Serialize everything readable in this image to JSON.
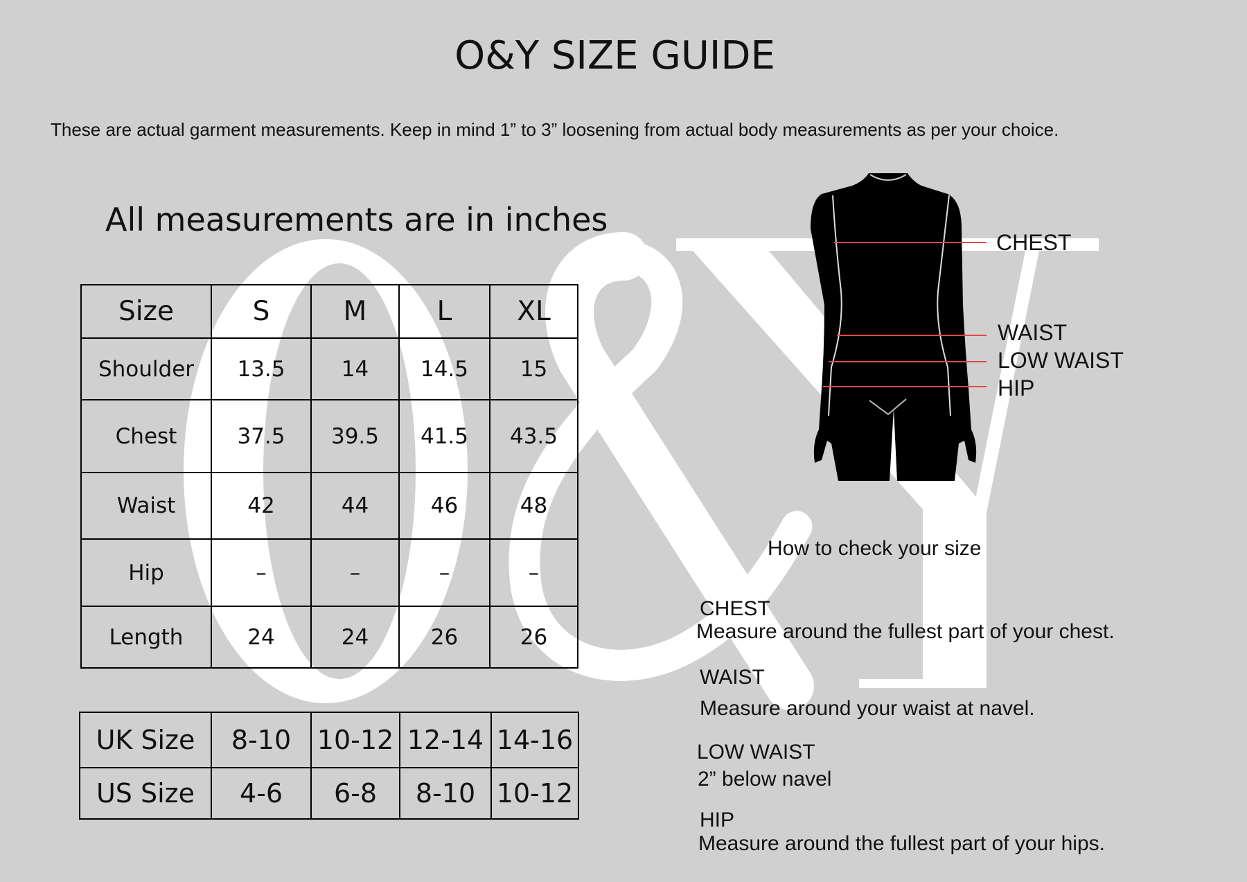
{
  "title": "O&Y SIZE GUIDE",
  "subtitle": "These are actual garment measurements. Keep in mind 1” to 3” loosening from actual body measurements as per your choice.",
  "units_note": "All measurements are in inches",
  "watermark_logo": "O&Y",
  "measurements": {
    "header": [
      "Size",
      "S",
      "M",
      "L",
      "XL"
    ],
    "rows": [
      [
        "Shoulder",
        "13.5",
        "14",
        "14.5",
        "15"
      ],
      [
        "Chest",
        "37.5",
        "39.5",
        "41.5",
        "43.5"
      ],
      [
        "Waist",
        "42",
        "44",
        "46",
        "48"
      ],
      [
        "Hip",
        "–",
        "–",
        "–",
        "–"
      ],
      [
        "Length",
        "24",
        "24",
        "26",
        "26"
      ]
    ]
  },
  "size_conversion": {
    "rows": [
      [
        "UK Size",
        "8-10",
        "10-12",
        "12-14",
        "14-16"
      ],
      [
        "US Size",
        "4-6",
        "6-8",
        "8-10",
        "10-12"
      ]
    ]
  },
  "diagram": {
    "labels": [
      "CHEST",
      "WAIST",
      "LOW WAIST",
      "HIP"
    ],
    "line_color": "#e04848"
  },
  "how_to": {
    "heading": "How to check your size",
    "items": [
      {
        "title": "CHEST",
        "text": "Measure around the fullest part of your chest."
      },
      {
        "title": "WAIST",
        "text": "Measure around your waist at navel."
      },
      {
        "title": "LOW WAIST",
        "text": "2” below navel"
      },
      {
        "title": "HIP",
        "text": "Measure around the fullest part of your hips."
      }
    ]
  }
}
